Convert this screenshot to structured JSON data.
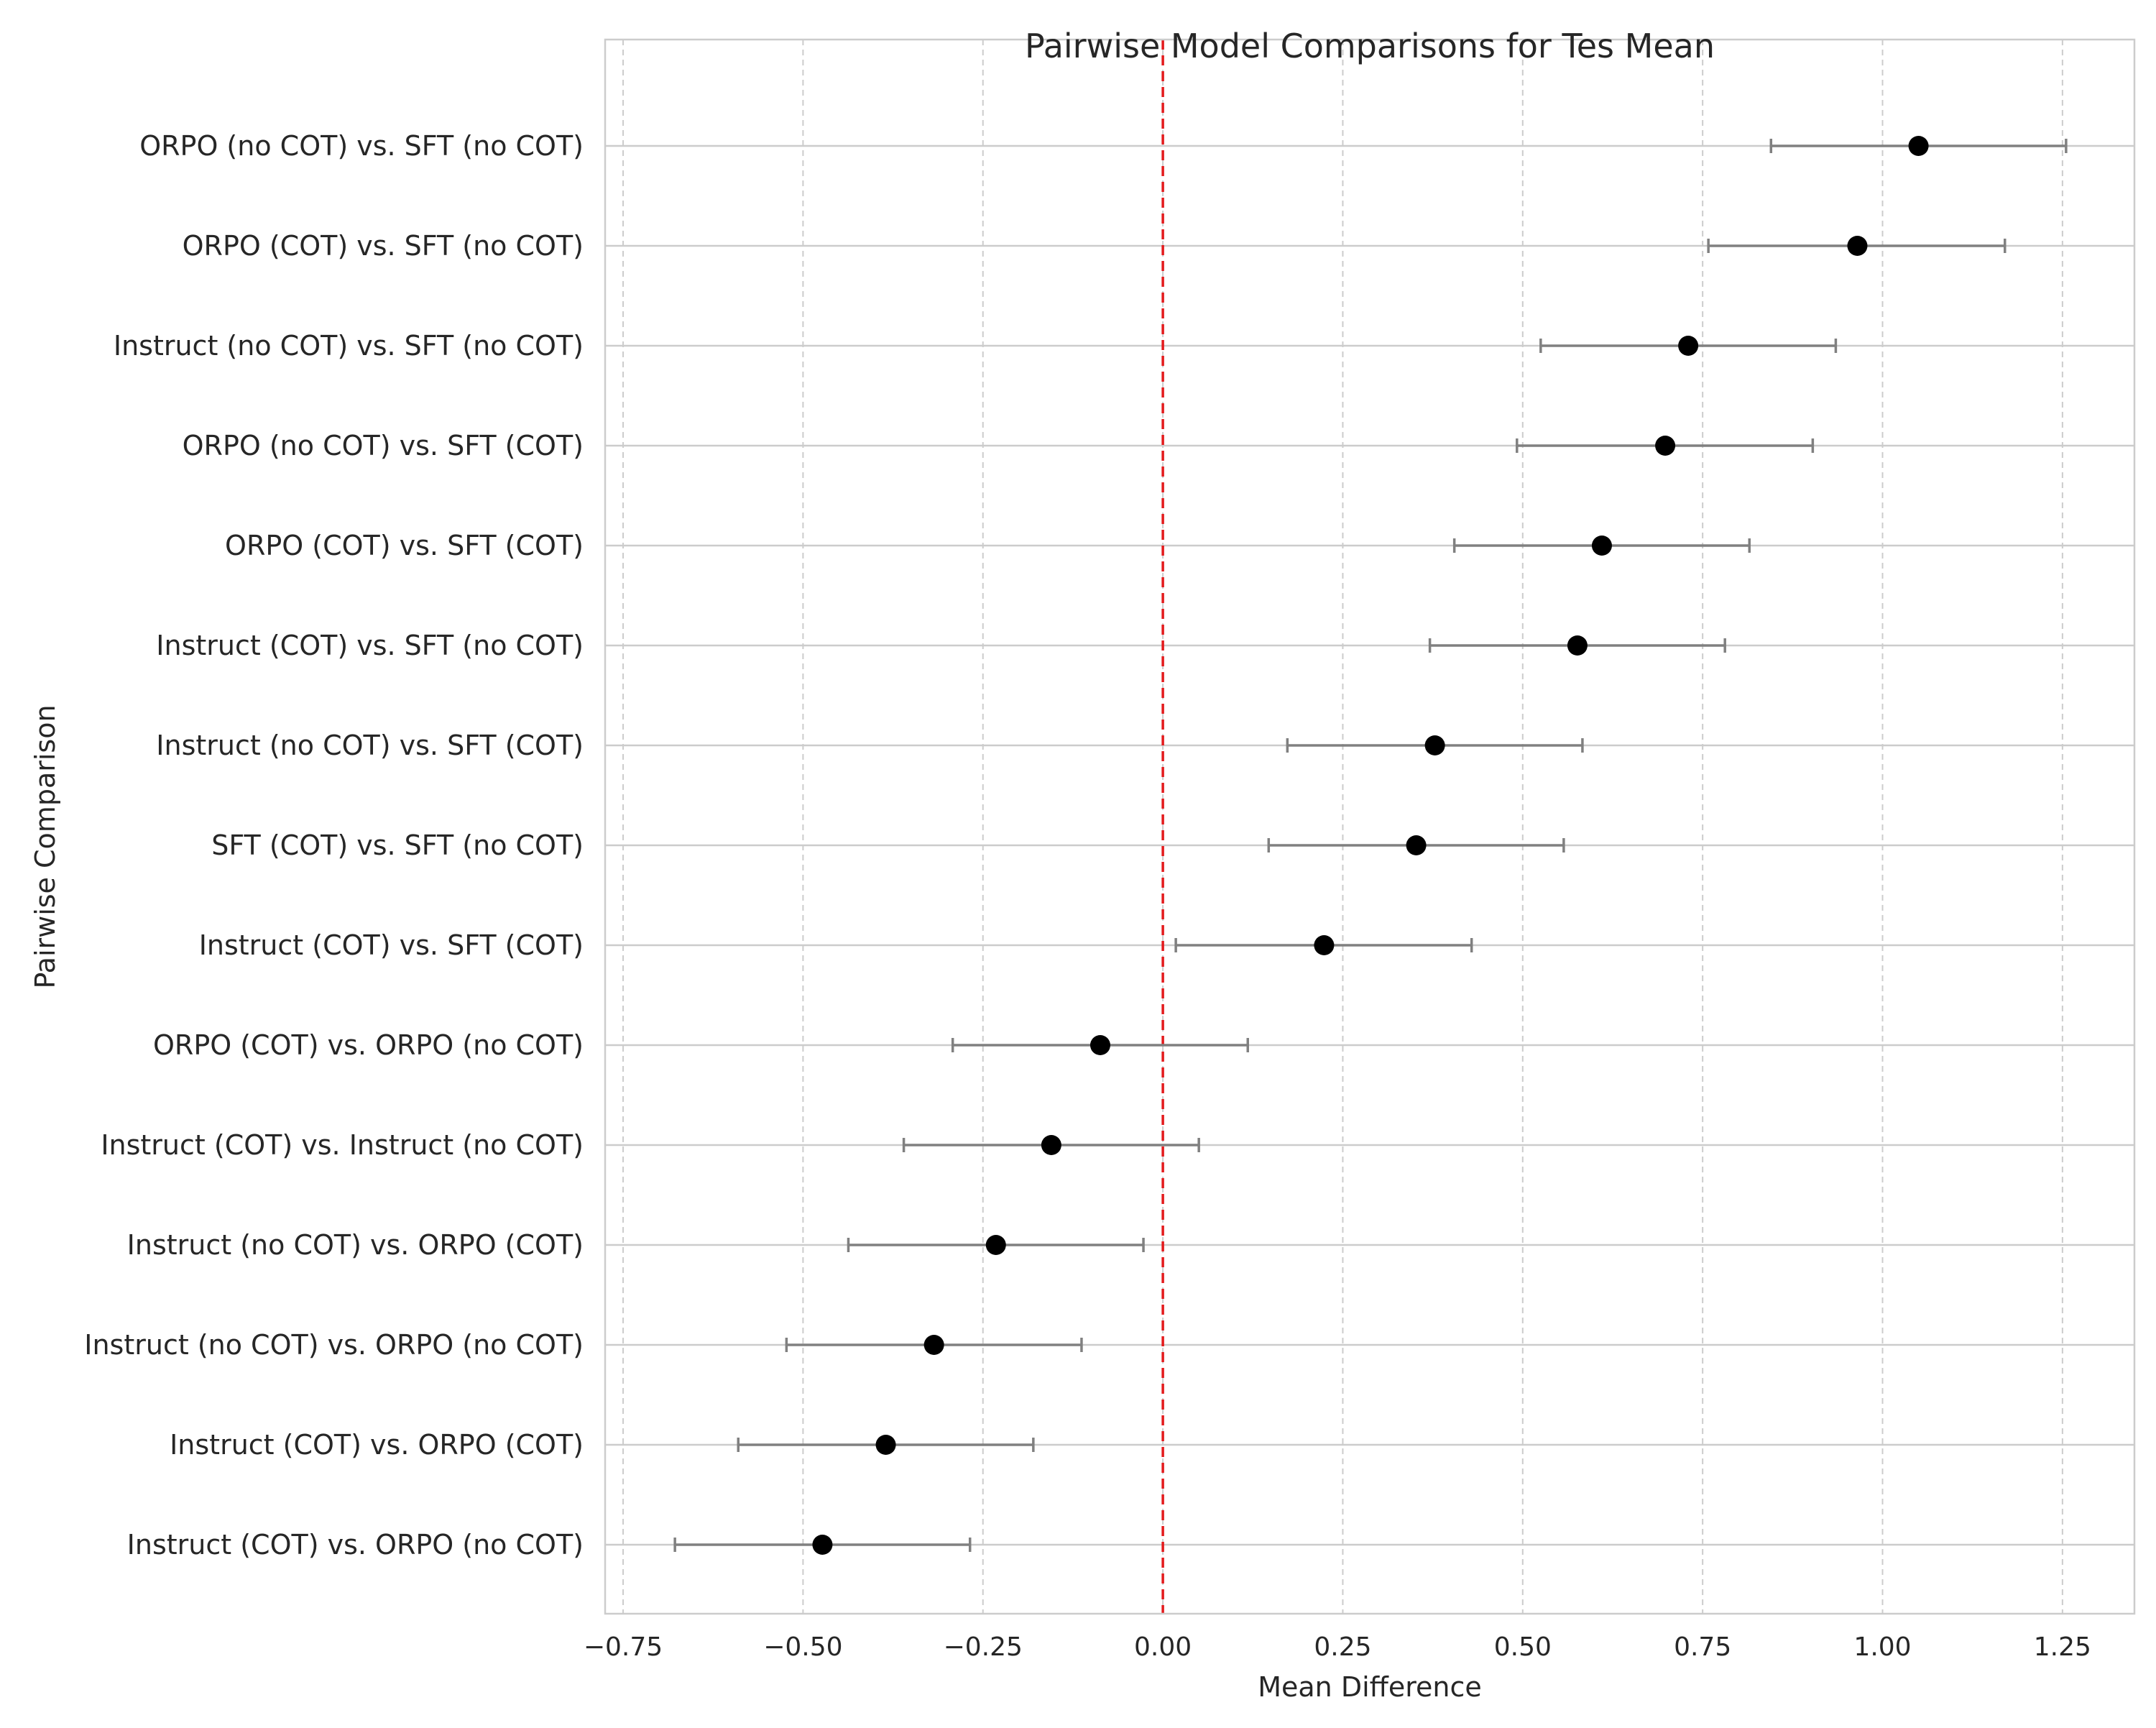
{
  "chart_data": {
    "type": "scatter",
    "orientation": "horizontal",
    "title": "Pairwise Model Comparisons for Tes Mean",
    "xlabel": "Mean Difference",
    "ylabel": "Pairwise Comparison",
    "xlim": [
      -0.775,
      1.35
    ],
    "xticks": [
      -0.75,
      -0.5,
      -0.25,
      0.0,
      0.25,
      0.5,
      0.75,
      1.0,
      1.25
    ],
    "xtick_labels": [
      "−0.75",
      "−0.50",
      "−0.25",
      "0.00",
      "0.25",
      "0.50",
      "0.75",
      "1.00",
      "1.25"
    ],
    "reference_line": {
      "x": 0.0,
      "color": "#e31a1c",
      "style": "dashed"
    },
    "grid": true,
    "colors": {
      "point": "#000000",
      "errorbar": "#808080",
      "grid": "#cccccc",
      "axes": "#cccccc"
    },
    "categories": [
      "ORPO (no COT) vs. SFT (no COT)",
      "ORPO (COT) vs. SFT (no COT)",
      "Instruct (no COT) vs. SFT (no COT)",
      "ORPO (no COT) vs. SFT (COT)",
      "ORPO (COT) vs. SFT (COT)",
      "Instruct (COT) vs. SFT (no COT)",
      "Instruct (no COT) vs. SFT (COT)",
      "SFT (COT) vs. SFT (no COT)",
      "Instruct (COT) vs. SFT (COT)",
      "ORPO (COT) vs. ORPO (no COT)",
      "Instruct (COT) vs. Instruct (no COT)",
      "Instruct (no COT) vs. ORPO (COT)",
      "Instruct (no COT) vs. ORPO (no COT)",
      "Instruct (COT) vs. ORPO (COT)",
      "Instruct (COT) vs. ORPO (no COT)"
    ],
    "values": [
      1.05,
      0.965,
      0.73,
      0.698,
      0.61,
      0.576,
      0.378,
      0.352,
      0.224,
      -0.087,
      -0.155,
      -0.232,
      -0.318,
      -0.385,
      -0.473
    ],
    "ci_lower": [
      0.845,
      0.758,
      0.525,
      0.492,
      0.405,
      0.371,
      0.173,
      0.147,
      0.018,
      -0.292,
      -0.36,
      -0.437,
      -0.523,
      -0.59,
      -0.678
    ],
    "ci_upper": [
      1.255,
      1.17,
      0.935,
      0.903,
      0.815,
      0.781,
      0.583,
      0.557,
      0.429,
      0.118,
      0.05,
      -0.027,
      -0.113,
      -0.18,
      -0.268
    ]
  }
}
